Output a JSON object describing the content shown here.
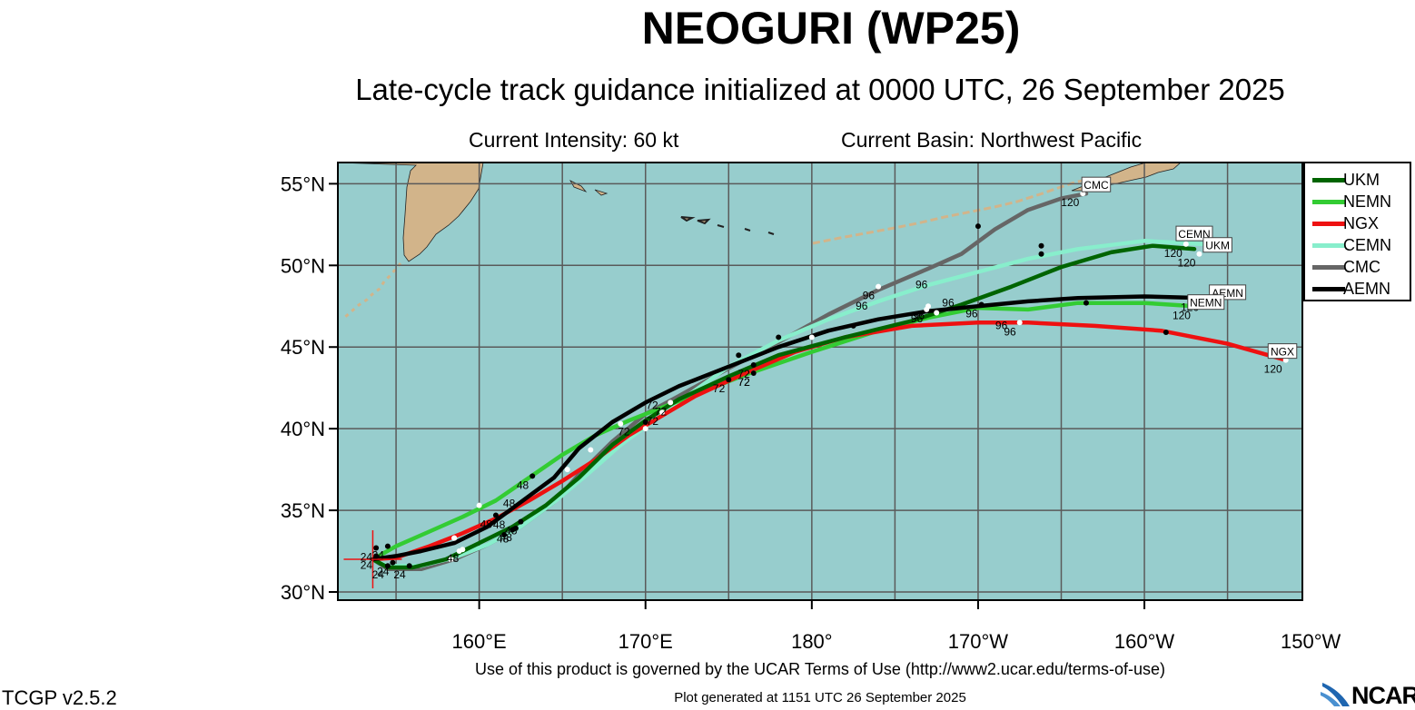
{
  "header": {
    "title": "NEOGURI (WP25)",
    "subtitle": "Late-cycle track guidance initialized at 0000 UTC, 26 September 2025",
    "intensity": "Current Intensity: 60 kt",
    "basin": "Current Basin: Northwest Pacific"
  },
  "footer": {
    "terms": "Use of this product is governed by the UCAR Terms of Use (http://www2.ucar.edu/terms-of-use)",
    "generated": "Plot generated at 1151 UTC   26 September 2025",
    "version": "TCGP v2.5.2",
    "logo": "NCAR"
  },
  "colors": {
    "ocean": "#97cdcd",
    "land": "#d2b48a",
    "grid": "#5a5a5a",
    "UKM": "#006400",
    "NEMN": "#33cc33",
    "NGX": "#ee1111",
    "CEMN": "#88eecc",
    "CMC": "#666666",
    "AEMN": "#000000"
  },
  "map": {
    "lon_range": [
      151.5,
      209.5
    ],
    "lat_range": [
      29.5,
      56.3
    ],
    "lat_ticks": [
      {
        "value": 30,
        "label": "30°N"
      },
      {
        "value": 35,
        "label": "35°N"
      },
      {
        "value": 40,
        "label": "40°N"
      },
      {
        "value": 45,
        "label": "45°N"
      },
      {
        "value": 50,
        "label": "50°N"
      },
      {
        "value": 55,
        "label": "55°N"
      }
    ],
    "lon_ticks": [
      {
        "value": 160,
        "label": "160°E"
      },
      {
        "value": 170,
        "label": "170°E"
      },
      {
        "value": 180,
        "label": "180°"
      },
      {
        "value": 190,
        "label": "170°W"
      },
      {
        "value": 200,
        "label": "160°W"
      },
      {
        "value": 210,
        "label": "150°W"
      }
    ],
    "grid_lons": [
      155,
      160,
      165,
      170,
      175,
      180,
      185,
      190,
      195,
      200,
      205
    ],
    "grid_lats": [
      30,
      35,
      40,
      45,
      50,
      55
    ],
    "storm_position": {
      "lon": 153.6,
      "lat": 32.0
    }
  },
  "legend": [
    {
      "name": "UKM",
      "color": "#006400"
    },
    {
      "name": "NEMN",
      "color": "#33cc33"
    },
    {
      "name": "NGX",
      "color": "#ee1111"
    },
    {
      "name": "CEMN",
      "color": "#88eecc"
    },
    {
      "name": "CMC",
      "color": "#666666"
    },
    {
      "name": "AEMN",
      "color": "#000000"
    }
  ],
  "chart_data": {
    "type": "line",
    "title": "NEOGURI (WP25)",
    "xlabel": "",
    "ylabel": "",
    "series": [
      {
        "name": "UKM",
        "color": "#006400",
        "points": [
          [
            153.6,
            32.0
          ],
          [
            154.5,
            31.5
          ],
          [
            156.0,
            31.5
          ],
          [
            158.0,
            32.0
          ],
          [
            160.0,
            33.0
          ],
          [
            162.0,
            34.0
          ],
          [
            164.0,
            35.3
          ],
          [
            166.0,
            37.0
          ],
          [
            168.0,
            39.0
          ],
          [
            170.0,
            40.5
          ],
          [
            172.0,
            41.8
          ],
          [
            175.0,
            43.2
          ],
          [
            178.0,
            44.5
          ],
          [
            182.0,
            45.6
          ],
          [
            186.0,
            46.6
          ],
          [
            189.0,
            47.6
          ],
          [
            192.0,
            48.7
          ],
          [
            195.0,
            49.9
          ],
          [
            198.0,
            50.8
          ],
          [
            200.5,
            51.2
          ],
          [
            203.0,
            51.0
          ]
        ],
        "markers": [
          [
            155.8,
            31.6,
            "24"
          ],
          [
            159.0,
            32.6,
            "48"
          ],
          [
            161.5,
            33.5,
            ""
          ],
          [
            171.0,
            41.0,
            "72"
          ],
          [
            176.5,
            43.4,
            "72"
          ],
          [
            187.5,
            47.1,
            ""
          ],
          [
            193.8,
            50.7,
            ""
          ],
          [
            203.3,
            50.7,
            "120"
          ]
        ]
      },
      {
        "name": "NEMN",
        "color": "#33cc33",
        "points": [
          [
            153.6,
            32.0
          ],
          [
            155.0,
            32.8
          ],
          [
            157.0,
            33.7
          ],
          [
            159.0,
            34.6
          ],
          [
            161.0,
            35.6
          ],
          [
            163.0,
            37.0
          ],
          [
            165.0,
            38.4
          ],
          [
            167.0,
            39.6
          ],
          [
            169.0,
            40.5
          ],
          [
            171.0,
            41.3
          ],
          [
            173.0,
            42.1
          ],
          [
            176.0,
            43.3
          ],
          [
            180.0,
            44.7
          ],
          [
            184.0,
            46.0
          ],
          [
            187.0,
            46.8
          ],
          [
            190.0,
            47.4
          ],
          [
            193.0,
            47.3
          ],
          [
            196.0,
            47.7
          ],
          [
            200.0,
            47.7
          ],
          [
            203.0,
            47.5
          ]
        ],
        "markers": [
          [
            154.5,
            32.8,
            "24"
          ],
          [
            160.0,
            35.3,
            ""
          ],
          [
            163.2,
            37.1,
            "48"
          ],
          [
            168.5,
            40.3,
            ""
          ],
          [
            175.0,
            43.0,
            "72"
          ],
          [
            186.9,
            47.3,
            "96"
          ],
          [
            196.5,
            47.7,
            ""
          ],
          [
            203.0,
            47.5,
            "120"
          ]
        ]
      },
      {
        "name": "NGX",
        "color": "#ee1111",
        "points": [
          [
            153.6,
            32.0
          ],
          [
            155.0,
            32.1
          ],
          [
            157.0,
            32.8
          ],
          [
            159.0,
            33.6
          ],
          [
            161.0,
            34.5
          ],
          [
            163.0,
            35.6
          ],
          [
            165.0,
            36.8
          ],
          [
            167.0,
            38.1
          ],
          [
            169.0,
            39.6
          ],
          [
            171.0,
            40.8
          ],
          [
            173.0,
            42.0
          ],
          [
            176.0,
            43.4
          ],
          [
            179.0,
            44.7
          ],
          [
            182.0,
            45.6
          ],
          [
            186.0,
            46.3
          ],
          [
            190.0,
            46.5
          ],
          [
            193.0,
            46.5
          ],
          [
            197.0,
            46.3
          ],
          [
            201.0,
            46.0
          ],
          [
            205.0,
            45.2
          ],
          [
            208.5,
            44.2
          ]
        ],
        "markers": [
          [
            153.8,
            32.2,
            "24"
          ],
          [
            158.5,
            33.3,
            ""
          ],
          [
            161.0,
            34.7,
            "48"
          ],
          [
            165.3,
            37.5,
            ""
          ],
          [
            170.0,
            40.4,
            ""
          ],
          [
            176.5,
            43.4,
            "72"
          ],
          [
            182.5,
            46.3,
            ""
          ],
          [
            192.5,
            46.5,
            "96"
          ],
          [
            201.3,
            45.9,
            ""
          ],
          [
            208.5,
            44.2,
            "120"
          ]
        ]
      },
      {
        "name": "CEMN",
        "color": "#88eecc",
        "points": [
          [
            153.6,
            32.0
          ],
          [
            154.5,
            31.6
          ],
          [
            156.5,
            31.6
          ],
          [
            158.5,
            32.1
          ],
          [
            160.5,
            32.9
          ],
          [
            162.5,
            34.0
          ],
          [
            164.5,
            35.5
          ],
          [
            166.5,
            37.2
          ],
          [
            168.5,
            39.0
          ],
          [
            170.5,
            40.5
          ],
          [
            172.5,
            42.0
          ],
          [
            175.0,
            43.8
          ],
          [
            178.0,
            45.4
          ],
          [
            181.0,
            46.7
          ],
          [
            184.0,
            47.8
          ],
          [
            187.0,
            48.8
          ],
          [
            190.0,
            49.6
          ],
          [
            193.0,
            50.4
          ],
          [
            196.0,
            51.0
          ],
          [
            200.0,
            51.5
          ],
          [
            203.5,
            51.3
          ]
        ],
        "markers": [
          [
            154.8,
            31.8,
            "24"
          ],
          [
            158.8,
            32.5,
            ""
          ],
          [
            162.2,
            33.9,
            "48"
          ],
          [
            166.7,
            38.7,
            ""
          ],
          [
            175.6,
            44.5,
            ""
          ],
          [
            180.0,
            45.6,
            ""
          ],
          [
            193.8,
            51.2,
            ""
          ],
          [
            202.5,
            51.3,
            "120"
          ]
        ]
      },
      {
        "name": "CMC",
        "color": "#666666",
        "points": [
          [
            153.6,
            32.0
          ],
          [
            154.5,
            31.4
          ],
          [
            156.5,
            31.4
          ],
          [
            158.5,
            32.0
          ],
          [
            160.5,
            32.9
          ],
          [
            162.5,
            34.0
          ],
          [
            164.5,
            35.5
          ],
          [
            166.0,
            37.2
          ],
          [
            168.0,
            39.2
          ],
          [
            170.0,
            40.9
          ],
          [
            172.0,
            42.0
          ],
          [
            175.0,
            43.7
          ],
          [
            178.0,
            45.3
          ],
          [
            181.0,
            47.0
          ],
          [
            184.0,
            48.5
          ],
          [
            187.0,
            49.8
          ],
          [
            189.0,
            50.7
          ],
          [
            191.0,
            52.2
          ],
          [
            193.0,
            53.4
          ],
          [
            195.0,
            54.1
          ],
          [
            196.5,
            54.4
          ]
        ],
        "markers": [
          [
            154.5,
            31.6,
            "24"
          ],
          [
            158.3,
            32.0,
            ""
          ],
          [
            162.0,
            33.8,
            "48"
          ],
          [
            170.0,
            40.0,
            ""
          ],
          [
            178.0,
            45.6,
            ""
          ],
          [
            184.0,
            48.7,
            "96"
          ],
          [
            190.0,
            52.4,
            ""
          ],
          [
            196.3,
            54.4,
            "120"
          ]
        ]
      },
      {
        "name": "AEMN",
        "color": "#000000",
        "points": [
          [
            153.6,
            32.0
          ],
          [
            155.0,
            32.2
          ],
          [
            156.5,
            32.5
          ],
          [
            158.5,
            33.0
          ],
          [
            160.5,
            34.0
          ],
          [
            162.5,
            35.5
          ],
          [
            164.5,
            37.0
          ],
          [
            166.0,
            38.8
          ],
          [
            168.0,
            40.4
          ],
          [
            170.0,
            41.6
          ],
          [
            172.0,
            42.6
          ],
          [
            175.0,
            43.8
          ],
          [
            178.0,
            45.0
          ],
          [
            181.0,
            46.0
          ],
          [
            184.0,
            46.7
          ],
          [
            187.0,
            47.2
          ],
          [
            190.0,
            47.5
          ],
          [
            193.0,
            47.8
          ],
          [
            196.0,
            48.0
          ],
          [
            200.0,
            48.1
          ],
          [
            203.5,
            48.0
          ]
        ],
        "markers": [
          [
            153.8,
            32.7,
            "24"
          ],
          [
            158.5,
            33.3,
            ""
          ],
          [
            162.5,
            34.3,
            "48"
          ],
          [
            171.5,
            41.6,
            "72"
          ],
          [
            176.5,
            43.9,
            "72"
          ],
          [
            187.0,
            47.5,
            "96"
          ],
          [
            190.2,
            47.6,
            "96"
          ],
          [
            203.5,
            48.0,
            "120"
          ]
        ]
      }
    ],
    "end_labels": [
      {
        "text": "CMC",
        "lon": 197.1,
        "lat": 54.9
      },
      {
        "text": "CEMN",
        "lon": 203.0,
        "lat": 51.9
      },
      {
        "text": "UKM",
        "lon": 204.4,
        "lat": 51.2
      },
      {
        "text": "AEMN",
        "lon": 205.0,
        "lat": 48.3
      },
      {
        "text": "NEMN",
        "lon": 203.7,
        "lat": 47.7
      },
      {
        "text": "NGX",
        "lon": 208.3,
        "lat": 44.7
      }
    ],
    "extra_labels": [
      {
        "text": "96",
        "lon": 183.0,
        "lat": 47.3
      },
      {
        "text": "96",
        "lon": 186.6,
        "lat": 48.6
      },
      {
        "text": "96",
        "lon": 188.2,
        "lat": 47.5
      },
      {
        "text": "96",
        "lon": 191.4,
        "lat": 46.1
      },
      {
        "text": "72",
        "lon": 168.7,
        "lat": 39.6
      },
      {
        "text": "72",
        "lon": 170.4,
        "lat": 41.2
      },
      {
        "text": "48",
        "lon": 161.2,
        "lat": 33.9
      },
      {
        "text": "48",
        "lon": 161.8,
        "lat": 35.2
      }
    ]
  }
}
